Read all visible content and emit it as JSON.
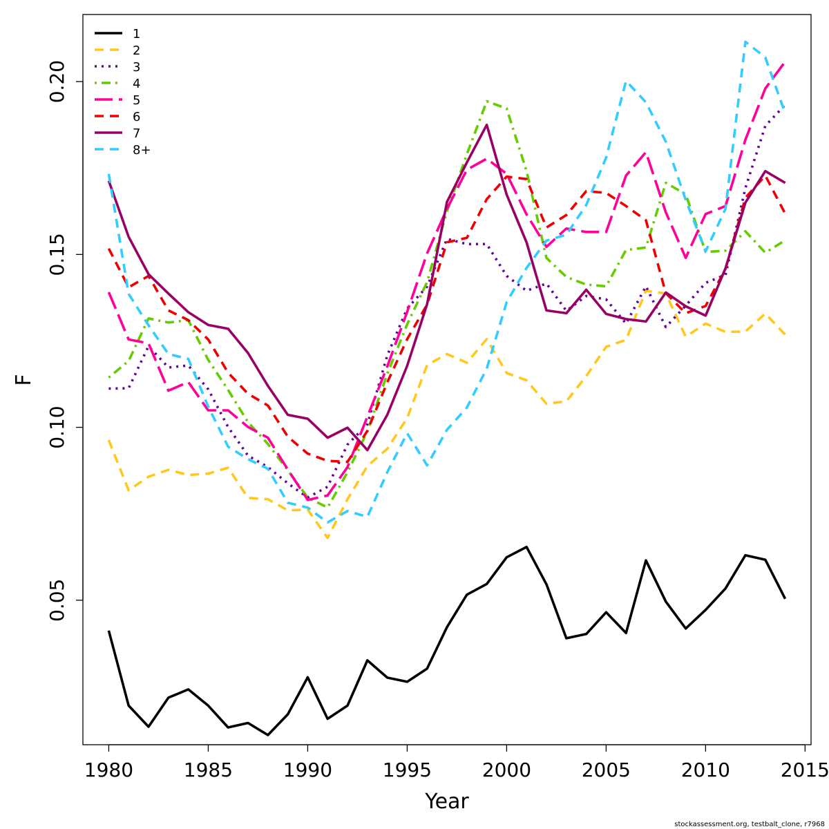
{
  "chart_data": {
    "type": "line",
    "title": "",
    "xlabel": "Year",
    "ylabel": "F",
    "xlim": [
      1978.7,
      2015.3
    ],
    "ylim": [
      0.0082,
      0.2194
    ],
    "x_ticks": [
      1980,
      1985,
      1990,
      1995,
      2000,
      2005,
      2010,
      2015
    ],
    "x_tick_labels": [
      "1980",
      "1985",
      "1990",
      "1995",
      "2000",
      "2005",
      "2010",
      "2015"
    ],
    "y_ticks": [
      0.05,
      0.1,
      0.15,
      0.2
    ],
    "y_tick_labels": [
      "0.05",
      "0.10",
      "0.15",
      "0.20"
    ],
    "grid": false,
    "legend_position": "top-left",
    "x": [
      1980,
      1981,
      1982,
      1983,
      1984,
      1985,
      1986,
      1987,
      1988,
      1989,
      1990,
      1991,
      1992,
      1993,
      1994,
      1995,
      1996,
      1997,
      1998,
      1999,
      2000,
      2001,
      2002,
      2003,
      2004,
      2005,
      2006,
      2007,
      2008,
      2009,
      2010,
      2011,
      2012,
      2013,
      2014
    ],
    "series": [
      {
        "name": "1",
        "color": "#000000",
        "dash": "solid",
        "values": [
          0.0412,
          0.0195,
          0.0134,
          0.0218,
          0.0242,
          0.0195,
          0.0132,
          0.0145,
          0.011,
          0.017,
          0.0277,
          0.0157,
          0.0195,
          0.0326,
          0.0276,
          0.0264,
          0.0302,
          0.0422,
          0.0516,
          0.0547,
          0.0624,
          0.0654,
          0.0546,
          0.039,
          0.0402,
          0.0465,
          0.0405,
          0.0615,
          0.0496,
          0.0418,
          0.0472,
          0.0534,
          0.063,
          0.0617,
          0.0504
        ]
      },
      {
        "name": "2",
        "color": "#FFC81E",
        "dash": "dashed",
        "values": [
          0.0963,
          0.0818,
          0.0857,
          0.0877,
          0.0862,
          0.0866,
          0.0883,
          0.0796,
          0.0792,
          0.076,
          0.0762,
          0.068,
          0.0792,
          0.0888,
          0.0938,
          0.1027,
          0.118,
          0.1212,
          0.1187,
          0.1255,
          0.1157,
          0.1136,
          0.1068,
          0.1075,
          0.1148,
          0.1233,
          0.1253,
          0.1395,
          0.1387,
          0.1262,
          0.13,
          0.1276,
          0.1277,
          0.1329,
          0.1268
        ]
      },
      {
        "name": "3",
        "color": "#66009A",
        "dash": "dotted",
        "values": [
          0.1112,
          0.1113,
          0.1235,
          0.1173,
          0.1179,
          0.111,
          0.1001,
          0.0918,
          0.0885,
          0.0838,
          0.0797,
          0.0828,
          0.095,
          0.1009,
          0.1208,
          0.1344,
          0.1407,
          0.1545,
          0.153,
          0.153,
          0.1438,
          0.1395,
          0.1416,
          0.1337,
          0.138,
          0.137,
          0.13,
          0.1408,
          0.129,
          0.1352,
          0.1418,
          0.1441,
          0.1692,
          0.1872,
          0.1933
        ]
      },
      {
        "name": "4",
        "color": "#66CC00",
        "dash": "dotdash",
        "values": [
          0.1144,
          0.1192,
          0.1315,
          0.1303,
          0.131,
          0.1195,
          0.1108,
          0.1015,
          0.0952,
          0.0876,
          0.0797,
          0.0768,
          0.087,
          0.0988,
          0.1155,
          0.1298,
          0.142,
          0.1625,
          0.179,
          0.1943,
          0.1922,
          0.1741,
          0.149,
          0.1435,
          0.1413,
          0.1408,
          0.1513,
          0.152,
          0.1707,
          0.1674,
          0.1507,
          0.1511,
          0.1567,
          0.1505,
          0.1541
        ]
      },
      {
        "name": "5",
        "color": "#FF0099",
        "dash": "longdash",
        "values": [
          0.1391,
          0.1254,
          0.1243,
          0.1106,
          0.1131,
          0.1049,
          0.1049,
          0.1001,
          0.097,
          0.0878,
          0.079,
          0.0803,
          0.0885,
          0.1031,
          0.1176,
          0.1334,
          0.1503,
          0.1632,
          0.1745,
          0.1777,
          0.1733,
          0.1616,
          0.1522,
          0.1575,
          0.1565,
          0.1565,
          0.1728,
          0.1796,
          0.1622,
          0.149,
          0.1617,
          0.164,
          0.1832,
          0.198,
          0.2058
        ]
      },
      {
        "name": "6",
        "color": "#EE0000",
        "dash": "dashed",
        "values": [
          0.1517,
          0.1405,
          0.1438,
          0.1338,
          0.131,
          0.1254,
          0.1158,
          0.1097,
          0.1063,
          0.0973,
          0.0924,
          0.0903,
          0.09,
          0.099,
          0.113,
          0.1255,
          0.1355,
          0.1535,
          0.1548,
          0.166,
          0.1725,
          0.1718,
          0.1578,
          0.1614,
          0.1683,
          0.1678,
          0.164,
          0.1599,
          0.1388,
          0.133,
          0.1351,
          0.1458,
          0.1664,
          0.1728,
          0.1618
        ]
      },
      {
        "name": "7",
        "color": "#990066",
        "dash": "solid",
        "values": [
          0.1713,
          0.1551,
          0.1443,
          0.1387,
          0.1333,
          0.1296,
          0.1285,
          0.1215,
          0.112,
          0.1036,
          0.1025,
          0.097,
          0.0999,
          0.0934,
          0.1036,
          0.1178,
          0.1356,
          0.1652,
          0.1766,
          0.1875,
          0.1673,
          0.1535,
          0.1338,
          0.133,
          0.1398,
          0.1328,
          0.1313,
          0.1306,
          0.139,
          0.135,
          0.1323,
          0.146,
          0.165,
          0.1741,
          0.1707
        ]
      },
      {
        "name": "8+",
        "color": "#33CCFF",
        "dash": "dashed",
        "values": [
          0.1733,
          0.1386,
          0.1295,
          0.1212,
          0.1198,
          0.106,
          0.0944,
          0.0908,
          0.088,
          0.0782,
          0.0768,
          0.0725,
          0.0758,
          0.0741,
          0.087,
          0.0983,
          0.089,
          0.0993,
          0.1057,
          0.117,
          0.1362,
          0.1461,
          0.154,
          0.1557,
          0.1643,
          0.178,
          0.2002,
          0.194,
          0.1826,
          0.1658,
          0.1509,
          0.1632,
          0.2115,
          0.207,
          0.1908
        ]
      }
    ]
  },
  "credit": "stockassessment.org, testbalt_clone, r7968"
}
